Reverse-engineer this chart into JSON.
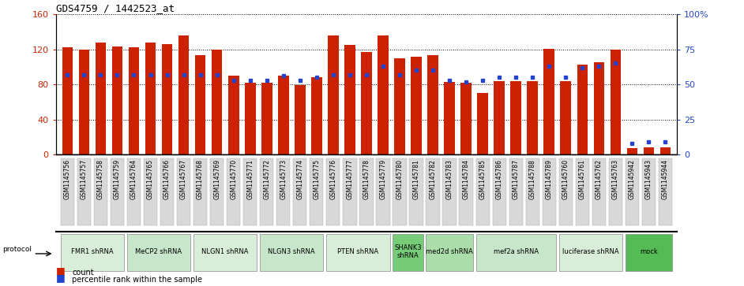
{
  "title": "GDS4759 / 1442523_at",
  "samples": [
    "GSM1145756",
    "GSM1145757",
    "GSM1145758",
    "GSM1145759",
    "GSM1145764",
    "GSM1145765",
    "GSM1145766",
    "GSM1145767",
    "GSM1145768",
    "GSM1145769",
    "GSM1145770",
    "GSM1145771",
    "GSM1145772",
    "GSM1145773",
    "GSM1145774",
    "GSM1145775",
    "GSM1145776",
    "GSM1145777",
    "GSM1145778",
    "GSM1145779",
    "GSM1145780",
    "GSM1145781",
    "GSM1145782",
    "GSM1145783",
    "GSM1145784",
    "GSM1145785",
    "GSM1145786",
    "GSM1145787",
    "GSM1145788",
    "GSM1145789",
    "GSM1145760",
    "GSM1145761",
    "GSM1145762",
    "GSM1145763",
    "GSM1145942",
    "GSM1145943",
    "GSM1145944"
  ],
  "counts": [
    122,
    120,
    128,
    123,
    122,
    128,
    126,
    136,
    113,
    120,
    90,
    82,
    82,
    90,
    79,
    88,
    136,
    125,
    117,
    136,
    110,
    112,
    113,
    83,
    82,
    70,
    84,
    84,
    84,
    121,
    84,
    103,
    105,
    120,
    7,
    8,
    8
  ],
  "percentiles": [
    57,
    57,
    57,
    57,
    57,
    57,
    57,
    57,
    57,
    57,
    53,
    53,
    53,
    56,
    53,
    55,
    57,
    57,
    57,
    63,
    57,
    60,
    60,
    53,
    52,
    53,
    55,
    55,
    55,
    63,
    55,
    62,
    63,
    65,
    8,
    9,
    9
  ],
  "groups": [
    {
      "label": "FMR1 shRNA",
      "start": 0,
      "end": 3,
      "color": "#d8eed8"
    },
    {
      "label": "MeCP2 shRNA",
      "start": 4,
      "end": 7,
      "color": "#c8e6c9"
    },
    {
      "label": "NLGN1 shRNA",
      "start": 8,
      "end": 11,
      "color": "#d8eed8"
    },
    {
      "label": "NLGN3 shRNA",
      "start": 12,
      "end": 15,
      "color": "#c8e6c9"
    },
    {
      "label": "PTEN shRNA",
      "start": 16,
      "end": 19,
      "color": "#d8eed8"
    },
    {
      "label": "SHANK3\nshRNA",
      "start": 20,
      "end": 21,
      "color": "#77cc77"
    },
    {
      "label": "med2d shRNA",
      "start": 22,
      "end": 24,
      "color": "#aaddaa"
    },
    {
      "label": "mef2a shRNA",
      "start": 25,
      "end": 29,
      "color": "#c8e6c9"
    },
    {
      "label": "luciferase shRNA",
      "start": 30,
      "end": 33,
      "color": "#d8eed8"
    },
    {
      "label": "mock",
      "start": 34,
      "end": 36,
      "color": "#55bb55"
    }
  ],
  "bar_color": "#cc2200",
  "dot_color": "#2244cc",
  "left_ylim": [
    0,
    160
  ],
  "right_ylim": [
    0,
    100
  ],
  "left_yticks": [
    0,
    40,
    80,
    120,
    160
  ],
  "right_yticks": [
    0,
    25,
    50,
    75,
    100
  ],
  "right_yticklabels": [
    "0",
    "25",
    "50",
    "75",
    "100%"
  ]
}
